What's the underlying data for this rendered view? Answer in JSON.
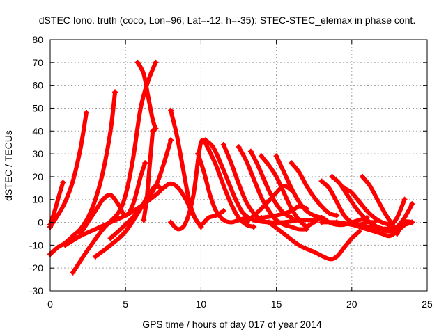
{
  "chart_data": {
    "type": "line",
    "title": "dSTEC Iono. truth (coco, Lon=96, Lat=-12, h=-35): STEC-STEC_elemax in phase cont.",
    "xlabel": "GPS time / hours of day 017 of year 2014",
    "ylabel": "dSTEC  / TECUs",
    "xlim": [
      0,
      25
    ],
    "ylim": [
      -30,
      80
    ],
    "xticks": [
      0,
      5,
      10,
      15,
      20,
      25
    ],
    "yticks": [
      -30,
      -20,
      -10,
      0,
      10,
      20,
      30,
      40,
      50,
      60,
      70,
      80
    ],
    "grid": true,
    "color": "#ff0000",
    "series": [
      {
        "x": [
          0.0,
          0.3,
          0.6,
          0.85
        ],
        "y": [
          -1,
          5,
          12,
          17.5
        ]
      },
      {
        "x": [
          0.0,
          0.5,
          1.0,
          1.5,
          2.0,
          2.4
        ],
        "y": [
          -2,
          3,
          9,
          18,
          32,
          48
        ]
      },
      {
        "x": [
          0.0,
          0.5,
          1.0,
          1.5,
          2.0,
          2.5,
          3.0,
          3.5,
          4.0,
          4.3
        ],
        "y": [
          -14,
          -11,
          -9,
          -6,
          -3,
          2,
          10,
          22,
          40,
          57
        ]
      },
      {
        "x": [
          1.0,
          2.0,
          3.0,
          4.0,
          5.0,
          6.0,
          7.0,
          7.5,
          8.0,
          8.5,
          9.0,
          9.5,
          10.0
        ],
        "y": [
          -10,
          -6,
          -3,
          0,
          3,
          7,
          12,
          15,
          17,
          15,
          10,
          3,
          -2
        ]
      },
      {
        "x": [
          2.0,
          3.0,
          3.5,
          4.0,
          4.5,
          5.0,
          5.5,
          6.0,
          6.3
        ],
        "y": [
          -5,
          5,
          10,
          12,
          8,
          3,
          8,
          20,
          26
        ]
      },
      {
        "x": [
          1.5,
          2.5,
          3.5,
          4.5,
          5.0,
          5.5,
          6.0,
          6.5,
          7.0
        ],
        "y": [
          -22,
          -12,
          -3,
          4,
          12,
          28,
          50,
          62,
          70
        ]
      },
      {
        "x": [
          3.0,
          4.0,
          5.0,
          6.0,
          6.5,
          7.0,
          7.3
        ],
        "y": [
          -15,
          -10,
          -4,
          6,
          12,
          16,
          15
        ]
      },
      {
        "x": [
          4.0,
          5.0,
          6.0,
          7.0,
          7.5,
          8.0
        ],
        "y": [
          -7,
          -1,
          6,
          16,
          25,
          36
        ]
      },
      {
        "x": [
          5.8,
          6.2,
          6.5,
          6.8,
          7.0
        ],
        "y": [
          70,
          65,
          55,
          45,
          41
        ]
      },
      {
        "x": [
          6.2,
          6.4,
          6.6,
          6.8
        ],
        "y": [
          1,
          10,
          25,
          40
        ]
      },
      {
        "x": [
          8.0,
          8.4,
          8.8,
          9.2,
          9.6,
          10.0,
          10.5,
          11.0,
          11.5
        ],
        "y": [
          49,
          38,
          24,
          10,
          2,
          -1,
          2,
          3,
          5
        ]
      },
      {
        "x": [
          8.0,
          8.5,
          9.0,
          9.5,
          10.0,
          10.5
        ],
        "y": [
          0,
          -3,
          0,
          12,
          35,
          32
        ]
      },
      {
        "x": [
          9.8,
          10.2,
          10.6,
          11.0,
          11.5,
          12.0,
          12.5,
          13.0
        ],
        "y": [
          30,
          22,
          12,
          5,
          1,
          0,
          1,
          2
        ]
      },
      {
        "x": [
          10.3,
          10.8,
          11.3,
          11.8,
          12.3,
          12.8,
          13.5,
          14.5,
          15.5,
          16.5,
          17.5
        ],
        "y": [
          36,
          33,
          26,
          18,
          10,
          4,
          1,
          0,
          0,
          1,
          1
        ]
      },
      {
        "x": [
          10.5,
          11.0,
          11.5,
          12.0,
          12.5,
          13.0,
          13.5
        ],
        "y": [
          32,
          25,
          16,
          8,
          2,
          -1,
          -2
        ]
      },
      {
        "x": [
          11.5,
          12.0,
          12.5,
          13.0,
          13.5,
          14.0,
          14.5,
          15.5,
          16.5
        ],
        "y": [
          34,
          26,
          17,
          9,
          4,
          1,
          0,
          0,
          1
        ]
      },
      {
        "x": [
          12.5,
          13.0,
          13.5,
          14.0,
          14.5,
          15.0,
          15.5,
          16.0,
          16.5,
          17.0
        ],
        "y": [
          33,
          27,
          19,
          11,
          5,
          1,
          -1,
          -2,
          -3,
          -3
        ]
      },
      {
        "x": [
          13.3,
          13.7,
          14.1,
          14.5,
          15.0,
          15.5,
          16.0
        ],
        "y": [
          31,
          26,
          20,
          14,
          8,
          4,
          2
        ]
      },
      {
        "x": [
          14.0,
          14.5,
          15.0,
          15.5,
          16.0,
          16.5,
          17.0
        ],
        "y": [
          29,
          25,
          20,
          13,
          6,
          1,
          -2
        ]
      },
      {
        "x": [
          15.0,
          15.5,
          16.0,
          16.5,
          17.0,
          17.5,
          18.0
        ],
        "y": [
          29,
          22,
          15,
          9,
          5,
          3,
          2
        ]
      },
      {
        "x": [
          13.0,
          14.0,
          15.0,
          15.5,
          16.0
        ],
        "y": [
          0,
          6,
          13,
          16,
          14
        ]
      },
      {
        "x": [
          14.0,
          15.0,
          16.0,
          16.5,
          17.0
        ],
        "y": [
          2,
          3,
          5,
          7,
          6
        ]
      },
      {
        "x": [
          16.0,
          16.5,
          17.0,
          17.5,
          18.0,
          18.5,
          19.0
        ],
        "y": [
          26,
          22,
          16,
          11,
          7,
          4,
          3
        ]
      },
      {
        "x": [
          14.5,
          15.5,
          16.5,
          17.5,
          18.5,
          19.0,
          19.5,
          20.0,
          20.5
        ],
        "y": [
          0,
          -5,
          -10,
          -13,
          -16,
          -15,
          -11,
          -7,
          -4
        ]
      },
      {
        "x": [
          17.0,
          17.5,
          18.0,
          18.5,
          19.0,
          19.5,
          20.0,
          20.5,
          21.0
        ],
        "y": [
          -2,
          0,
          2,
          0,
          -1,
          -1,
          0,
          1,
          2
        ]
      },
      {
        "x": [
          18.0,
          18.5,
          19.0,
          19.5,
          20.0,
          20.5,
          21.0,
          21.5
        ],
        "y": [
          18,
          15,
          9,
          3,
          0,
          -1,
          0,
          0
        ]
      },
      {
        "x": [
          18.0,
          19.0,
          20.0,
          21.0,
          22.0,
          23.0,
          24.0
        ],
        "y": [
          0,
          0,
          -1,
          -2,
          -3,
          -2,
          0
        ]
      },
      {
        "x": [
          18.7,
          19.2,
          19.7,
          20.2,
          20.7,
          21.2,
          21.7,
          22.2
        ],
        "y": [
          20,
          17,
          12,
          7,
          3,
          0,
          -2,
          -3
        ]
      },
      {
        "x": [
          19.5,
          20.0,
          20.5,
          21.0,
          21.5,
          22.0,
          22.5
        ],
        "y": [
          15,
          13,
          9,
          5,
          2,
          0,
          -1
        ]
      },
      {
        "x": [
          20.7,
          21.2,
          21.7,
          22.2,
          22.7,
          23.0
        ],
        "y": [
          20,
          16,
          10,
          4,
          -1,
          -3
        ]
      },
      {
        "x": [
          19.0,
          20.0,
          21.0,
          22.0,
          22.5,
          23.0,
          23.5
        ],
        "y": [
          0,
          -1,
          -3,
          -5,
          -6,
          -4,
          -1
        ]
      },
      {
        "x": [
          22.0,
          22.5,
          23.0,
          23.5,
          24.0
        ],
        "y": [
          -3,
          -4,
          -2,
          2,
          8
        ]
      },
      {
        "x": [
          22.5,
          23.0,
          23.5
        ],
        "y": [
          -2,
          2,
          10
        ]
      },
      {
        "x": [
          23.0,
          23.5,
          24.0
        ],
        "y": [
          -5,
          0,
          0
        ]
      }
    ]
  }
}
